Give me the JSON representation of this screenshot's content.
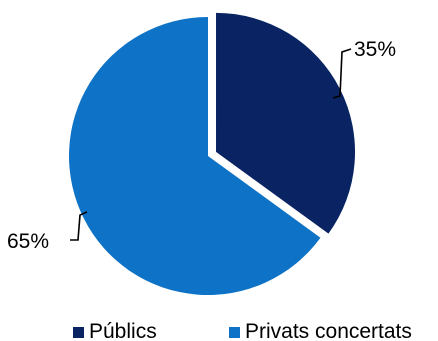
{
  "chart_data": {
    "type": "pie",
    "categories": [
      "Públics",
      "Privats concertats"
    ],
    "values": [
      35,
      65
    ],
    "data_labels": [
      "35%",
      "65%"
    ],
    "colors": [
      "#0a2463",
      "#0e73c6"
    ],
    "exploded": "Públics",
    "legend_position": "bottom"
  }
}
